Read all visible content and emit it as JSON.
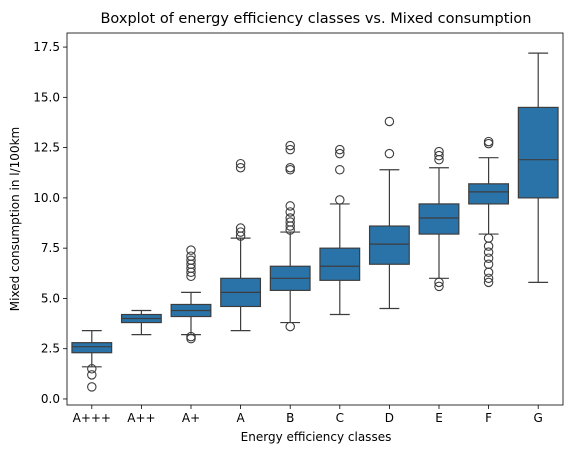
{
  "chart_data": {
    "type": "boxplot",
    "title": "Boxplot of energy efficiency classes vs. Mixed consumption",
    "xlabel": "Energy efficiency classes",
    "ylabel": "Mixed consumption in l/100km",
    "ylim": [
      -0.3,
      18.2
    ],
    "yticks": [
      "0.0",
      "2.5",
      "5.0",
      "7.5",
      "10.0",
      "12.5",
      "15.0",
      "17.5"
    ],
    "grid": false,
    "box_color": "#2a73a8",
    "edge_color": "#3d3d3d",
    "categories": [
      "A+++",
      "A++",
      "A+",
      "A",
      "B",
      "C",
      "D",
      "E",
      "F",
      "G"
    ],
    "boxes": [
      {
        "category": "A+++",
        "whisker_low": 1.6,
        "q1": 2.3,
        "median": 2.6,
        "q3": 2.8,
        "whisker_high": 3.4,
        "outliers": [
          1.5,
          1.2,
          0.6
        ]
      },
      {
        "category": "A++",
        "whisker_low": 3.2,
        "q1": 3.8,
        "median": 4.0,
        "q3": 4.2,
        "whisker_high": 4.4,
        "outliers": []
      },
      {
        "category": "A+",
        "whisker_low": 3.2,
        "q1": 4.1,
        "median": 4.4,
        "q3": 4.7,
        "whisker_high": 5.3,
        "outliers": [
          3.0,
          3.1,
          6.1,
          6.3,
          6.5,
          6.7,
          6.9,
          7.1,
          7.4
        ]
      },
      {
        "category": "A",
        "whisker_low": 3.4,
        "q1": 4.6,
        "median": 5.3,
        "q3": 6.0,
        "whisker_high": 8.0,
        "outliers": [
          8.1,
          8.3,
          8.5,
          11.5,
          11.7
        ]
      },
      {
        "category": "B",
        "whisker_low": 3.8,
        "q1": 5.4,
        "median": 6.0,
        "q3": 6.6,
        "whisker_high": 8.3,
        "outliers": [
          3.6,
          8.4,
          8.6,
          8.8,
          9.0,
          9.3,
          9.6,
          11.4,
          11.5,
          12.4,
          12.6
        ]
      },
      {
        "category": "C",
        "whisker_low": 4.2,
        "q1": 5.9,
        "median": 6.6,
        "q3": 7.5,
        "whisker_high": 9.7,
        "outliers": [
          9.9,
          11.4,
          12.2,
          12.4
        ]
      },
      {
        "category": "D",
        "whisker_low": 4.5,
        "q1": 6.7,
        "median": 7.7,
        "q3": 8.6,
        "whisker_high": 11.4,
        "outliers": [
          12.2,
          13.8
        ]
      },
      {
        "category": "E",
        "whisker_low": 6.0,
        "q1": 8.2,
        "median": 9.0,
        "q3": 9.7,
        "whisker_high": 11.5,
        "outliers": [
          5.6,
          5.8,
          11.9,
          12.1,
          12.3
        ]
      },
      {
        "category": "F",
        "whisker_low": 8.2,
        "q1": 9.7,
        "median": 10.3,
        "q3": 10.7,
        "whisker_high": 12.0,
        "outliers": [
          5.8,
          6.0,
          6.3,
          6.7,
          7.0,
          7.3,
          7.6,
          8.0,
          12.7,
          12.8
        ]
      },
      {
        "category": "G",
        "whisker_low": 5.8,
        "q1": 10.0,
        "median": 11.9,
        "q3": 14.5,
        "whisker_high": 17.2,
        "outliers": []
      }
    ]
  }
}
